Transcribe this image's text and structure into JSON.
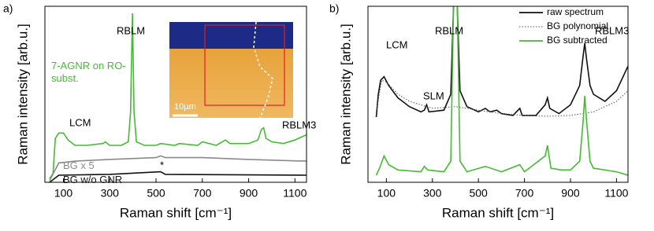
{
  "chart_data": [
    {
      "type": "line",
      "label": "a)",
      "xlabel": "Raman shift [cm⁻¹]",
      "ylabel": "Raman intensity [arb.u.]",
      "xlim": [
        20,
        1150
      ],
      "xticks": [
        100,
        300,
        500,
        700,
        900,
        1100
      ],
      "ylim": [
        0,
        100
      ],
      "series": [
        {
          "name": "7-AGNR on RO-subst.",
          "color": "#44bb33",
          "x": [
            40,
            55,
            65,
            80,
            100,
            120,
            150,
            200,
            270,
            280,
            300,
            350,
            380,
            390,
            398,
            405,
            415,
            450,
            500,
            520,
            580,
            600,
            680,
            700,
            760,
            800,
            820,
            900,
            940,
            955,
            965,
            975,
            1000,
            1050,
            1100,
            1150
          ],
          "values": [
            2,
            5,
            25,
            28,
            28,
            24,
            21,
            21,
            22,
            23,
            21,
            21,
            23,
            40,
            96,
            40,
            23,
            21,
            21,
            22,
            21,
            22,
            21,
            23,
            21,
            24,
            22,
            22,
            24,
            30,
            31,
            25,
            23,
            22,
            24,
            27
          ]
        },
        {
          "name": "BG x 5",
          "color": "#8a8a8a",
          "x": [
            40,
            60,
            80,
            150,
            300,
            500,
            520,
            540,
            700,
            900,
            1150
          ],
          "values": [
            1,
            6,
            11,
            12,
            13,
            14,
            15,
            14,
            14,
            13,
            12
          ]
        },
        {
          "name": "BG w/o GNR",
          "color": "#111111",
          "x": [
            40,
            60,
            80,
            300,
            520,
            540,
            1150
          ],
          "values": [
            0,
            2,
            4,
            4.5,
            6,
            4.5,
            4
          ]
        }
      ],
      "annotations": [
        "RBLM",
        "LCM",
        "RBLM3",
        "*"
      ],
      "inset_scale": "10µm"
    },
    {
      "type": "line",
      "label": "b)",
      "xlabel": "Raman shift [cm⁻¹]",
      "ylabel": "Raman intensity [arb.u.]",
      "xlim": [
        20,
        1150
      ],
      "xticks": [
        100,
        300,
        500,
        700,
        900,
        1100
      ],
      "ylim": [
        0,
        100
      ],
      "legend": "upper right",
      "series": [
        {
          "name": "raw spectrum",
          "color": "#111111",
          "dash": "solid",
          "x": [
            56,
            65,
            75,
            90,
            110,
            150,
            200,
            250,
            265,
            275,
            285,
            350,
            380,
            392,
            400,
            408,
            420,
            450,
            500,
            530,
            550,
            580,
            600,
            650,
            680,
            690,
            750,
            790,
            800,
            810,
            850,
            900,
            940,
            955,
            962,
            970,
            985,
            1000,
            1050,
            1100,
            1150
          ],
          "values": [
            37,
            50,
            58,
            60,
            55,
            48,
            43,
            40,
            41,
            44,
            40,
            41,
            50,
            100,
            105,
            100,
            52,
            43,
            40,
            42,
            40,
            41,
            39,
            38,
            42,
            38,
            38,
            44,
            48,
            42,
            39,
            44,
            55,
            72,
            79,
            70,
            55,
            50,
            46,
            52,
            66
          ]
        },
        {
          "name": "BG polynomial",
          "color": "#555555",
          "dash": "dotted",
          "x": [
            56,
            80,
            100,
            150,
            200,
            300,
            400,
            500,
            600,
            700,
            800,
            900,
            1000,
            1100,
            1150
          ],
          "values": [
            40,
            58,
            57,
            50,
            46,
            42,
            43,
            41,
            39,
            38,
            37.5,
            38,
            40,
            46,
            52
          ]
        },
        {
          "name": "BG subtracted",
          "color": "#44bb33",
          "dash": "solid",
          "x": [
            56,
            70,
            90,
            110,
            150,
            250,
            265,
            280,
            350,
            380,
            392,
            400,
            408,
            420,
            450,
            530,
            600,
            680,
            700,
            790,
            800,
            815,
            860,
            900,
            940,
            955,
            962,
            970,
            985,
            1000,
            1100,
            1150
          ],
          "values": [
            4,
            8,
            15,
            10,
            7,
            6,
            9,
            7,
            6,
            12,
            100,
            105,
            100,
            12,
            6,
            9,
            6,
            10,
            6,
            15,
            21,
            8,
            7,
            7,
            12,
            35,
            49,
            35,
            12,
            8,
            6,
            4
          ]
        }
      ],
      "annotations": [
        "LCM",
        "SLM",
        "RBLM",
        "RBLM3"
      ]
    }
  ]
}
